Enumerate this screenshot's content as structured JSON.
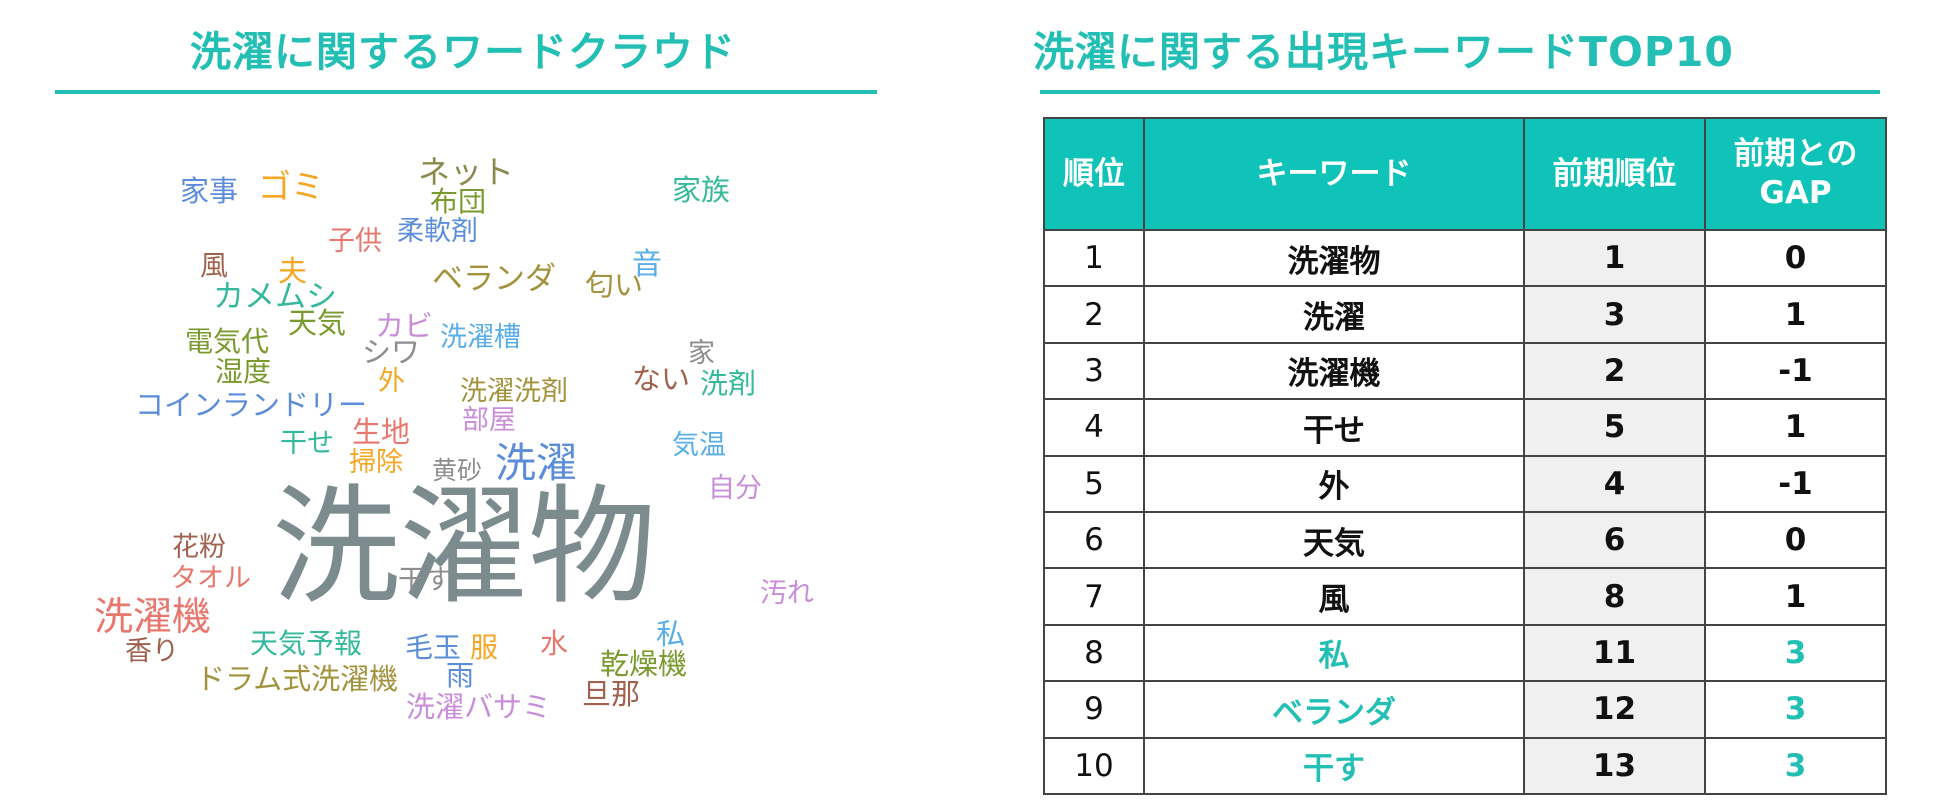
{
  "left_title": "洗濯に関するワードクラウド",
  "right_title": "洗濯に関する出現キーワードTOP10",
  "cloud_words": [
    "家事",
    "ゴミ",
    "ネット",
    "布団",
    "家族",
    "子供",
    "柔軟剤",
    "風",
    "夫",
    "音",
    "カメムシ",
    "ベランダ",
    "匂い",
    "天気",
    "電気代",
    "カビ",
    "洗濯槽",
    "シワ",
    "家",
    "湿度",
    "外",
    "ない",
    "洗剤",
    "洗濯洗剤",
    "コインランドリー",
    "部屋",
    "生地",
    "干せ",
    "気温",
    "洗濯",
    "掃除",
    "黄砂",
    "自分",
    "洗濯物",
    "花粉",
    "タオル",
    "干す",
    "汚れ",
    "洗濯機",
    "私",
    "香り",
    "天気予報",
    "毛玉",
    "服",
    "水",
    "乾燥機",
    "ドラム式洗濯機",
    "雨",
    "旦那",
    "洗濯バサミ"
  ],
  "table": {
    "headers": {
      "rank": "順位",
      "keyword": "キーワード",
      "prev_rank": "前期順位",
      "gap_line1": "前期との",
      "gap_line2": "GAP"
    },
    "rows": [
      {
        "rank": "1",
        "keyword": "洗濯物",
        "prev": "1",
        "gap": "0"
      },
      {
        "rank": "2",
        "keyword": "洗濯",
        "prev": "3",
        "gap": "1"
      },
      {
        "rank": "3",
        "keyword": "洗濯機",
        "prev": "2",
        "gap": "-1"
      },
      {
        "rank": "4",
        "keyword": "干せ",
        "prev": "5",
        "gap": "1"
      },
      {
        "rank": "5",
        "keyword": "外",
        "prev": "4",
        "gap": "-1"
      },
      {
        "rank": "6",
        "keyword": "天気",
        "prev": "6",
        "gap": "0"
      },
      {
        "rank": "7",
        "keyword": "風",
        "prev": "8",
        "gap": "1"
      },
      {
        "rank": "8",
        "keyword": "私",
        "prev": "11",
        "gap": "3"
      },
      {
        "rank": "9",
        "keyword": "ベランダ",
        "prev": "12",
        "gap": "3"
      },
      {
        "rank": "10",
        "keyword": "干す",
        "prev": "13",
        "gap": "3"
      }
    ]
  },
  "colors": {
    "accent": "#23bfb4",
    "header_bg": "#10c3b8",
    "prev_col_bg": "#f0f0f0"
  }
}
